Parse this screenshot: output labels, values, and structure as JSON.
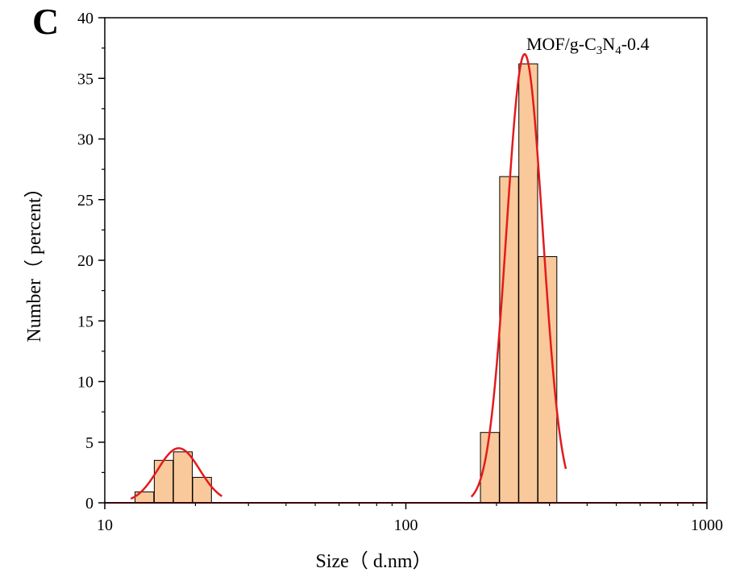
{
  "chart_data": {
    "type": "bar",
    "panel_label": "C",
    "xlabel": "Size（ d.nm）",
    "ylabel": "Number（ percent）",
    "x_scale": "log",
    "xlim": [
      10,
      1000
    ],
    "ylim": [
      0,
      40
    ],
    "x_tick_labels": [
      "10",
      "100",
      "1000"
    ],
    "x_tick_values": [
      10,
      100,
      1000
    ],
    "y_tick_labels": [
      "0",
      "5",
      "10",
      "15",
      "20",
      "25",
      "30",
      "35",
      "40"
    ],
    "y_tick_values": [
      0,
      5,
      10,
      15,
      20,
      25,
      30,
      35,
      40
    ],
    "annotation": {
      "parts": [
        {
          "text": "MOF/g-C",
          "sub": false
        },
        {
          "text": "3",
          "sub": true
        },
        {
          "text": "N",
          "sub": false
        },
        {
          "text": "4",
          "sub": true
        },
        {
          "text": "-0.4",
          "sub": false
        }
      ]
    },
    "bar_color": "#f9c99b",
    "bar_edge_color": "#000000",
    "fit_color": "#e31a1c",
    "bars": [
      {
        "size": 13.54,
        "value": 0.9
      },
      {
        "size": 15.69,
        "value": 3.5
      },
      {
        "size": 18.17,
        "value": 4.2
      },
      {
        "size": 21.04,
        "value": 2.1
      },
      {
        "size": 190.1,
        "value": 5.8
      },
      {
        "size": 220.2,
        "value": 26.9
      },
      {
        "size": 255.0,
        "value": 36.2
      },
      {
        "size": 295.3,
        "value": 20.3
      }
    ],
    "fit_curves": [
      {
        "size_range": [
          12.2,
          24.5
        ],
        "peak_size": 17.6,
        "peak_value": 4.5,
        "log_sigma": 0.0698
      },
      {
        "size_range": [
          165,
          340
        ],
        "peak_size": 248,
        "peak_value": 37.0,
        "log_sigma": 0.0603
      }
    ]
  }
}
